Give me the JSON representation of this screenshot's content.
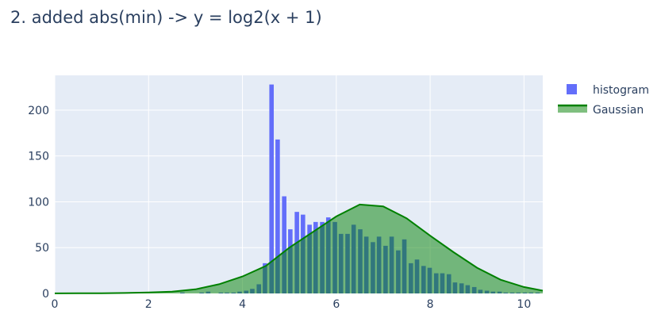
{
  "title": "2. added abs(min) -> y = log2(x + 1)",
  "chart_data": {
    "type": "bar",
    "title": "2. added abs(min) -> y = log2(x + 1)",
    "xlabel": "",
    "ylabel": "",
    "xlim": [
      0,
      10.4
    ],
    "ylim": [
      0,
      238
    ],
    "x_ticks": [
      0,
      2,
      4,
      6,
      8,
      10
    ],
    "y_ticks": [
      0,
      50,
      100,
      150,
      200
    ],
    "grid": true,
    "legend_position": "top-right",
    "colors": {
      "plot_bg": "#e5ecf6",
      "histogram": "#636efa",
      "gaussian_line": "#008000",
      "gaussian_fill": "#008000"
    },
    "series": [
      {
        "name": "histogram",
        "kind": "bar",
        "bin_width": 0.135,
        "x": [
          2.72,
          3.13,
          3.27,
          3.54,
          3.67,
          3.81,
          3.94,
          4.08,
          4.21,
          4.35,
          4.48,
          4.62,
          4.75,
          4.89,
          5.02,
          5.16,
          5.29,
          5.43,
          5.56,
          5.7,
          5.83,
          5.97,
          6.1,
          6.24,
          6.37,
          6.51,
          6.64,
          6.78,
          6.91,
          7.05,
          7.18,
          7.32,
          7.45,
          7.59,
          7.72,
          7.86,
          7.99,
          8.13,
          8.26,
          8.4,
          8.53,
          8.67,
          8.8,
          8.94,
          9.07,
          9.21,
          9.34,
          9.48,
          9.61,
          9.75,
          9.88,
          10.02,
          10.15,
          10.29
        ],
        "values": [
          1,
          1,
          2,
          1,
          1,
          1,
          2,
          3,
          5,
          10,
          33,
          228,
          168,
          106,
          70,
          89,
          86,
          75,
          78,
          78,
          83,
          78,
          65,
          65,
          75,
          70,
          62,
          56,
          62,
          52,
          62,
          47,
          59,
          33,
          37,
          30,
          28,
          22,
          22,
          21,
          12,
          11,
          9,
          7,
          4,
          3,
          2,
          2,
          1,
          1,
          1,
          1,
          1,
          1
        ]
      },
      {
        "name": "Gaussian",
        "kind": "area",
        "x": [
          0,
          0.5,
          1,
          1.5,
          2,
          2.5,
          3,
          3.5,
          4,
          4.5,
          5,
          5.5,
          6,
          6.5,
          7,
          7.5,
          8,
          8.5,
          9,
          9.5,
          10,
          10.4
        ],
        "values": [
          0.1,
          0.2,
          0.3,
          0.5,
          1,
          2,
          4.5,
          10,
          18.5,
          30,
          50,
          67,
          84,
          97,
          95,
          82,
          63,
          45,
          28,
          15,
          7,
          3
        ]
      }
    ]
  }
}
